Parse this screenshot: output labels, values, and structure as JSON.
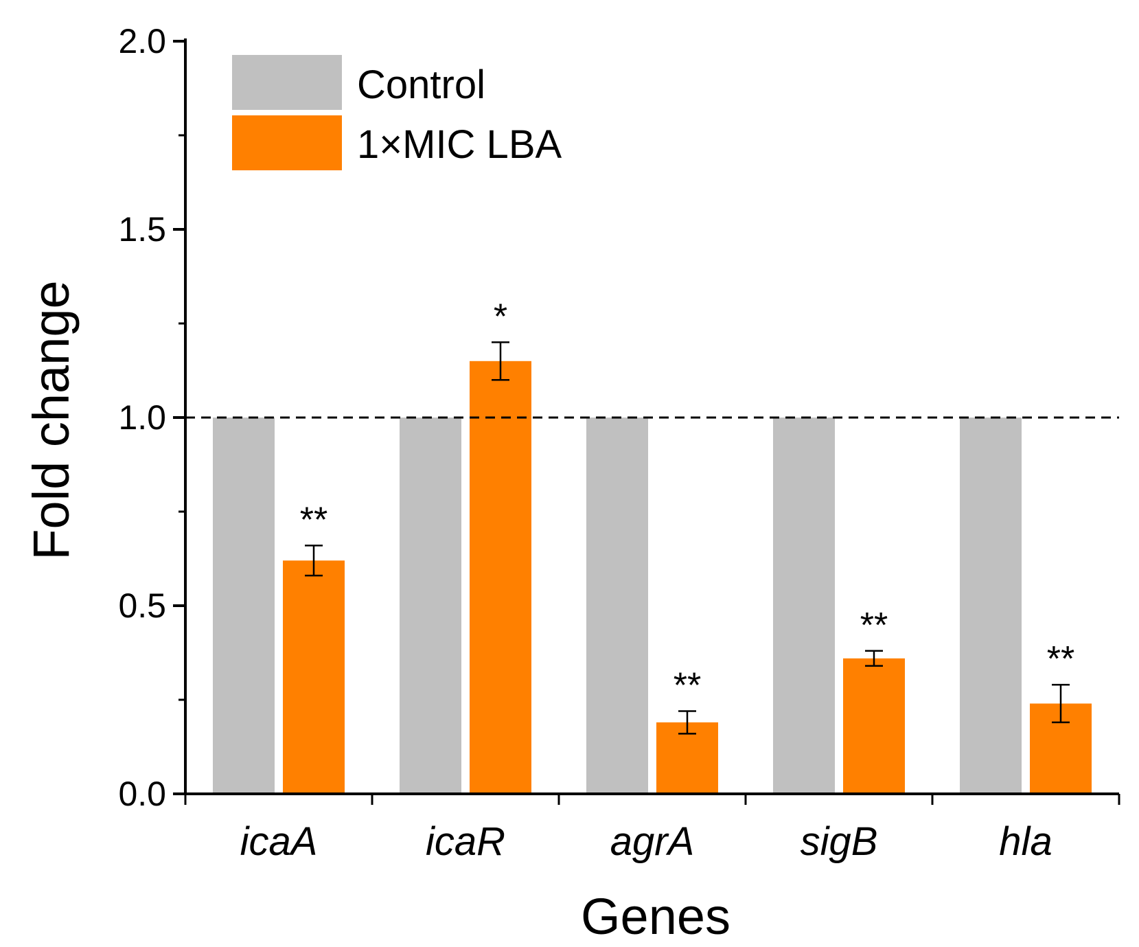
{
  "chart_data": {
    "type": "bar",
    "title": "",
    "xlabel": "Genes",
    "ylabel": "Fold change",
    "ylim": [
      0,
      2.0
    ],
    "yticks": [
      "0.0",
      "0.5",
      "1.0",
      "1.5",
      "2.0"
    ],
    "categories": [
      "icaA",
      "icaR",
      "agrA",
      "sigB",
      "hla"
    ],
    "series": [
      {
        "name": "Control",
        "color": "#c0c0c0",
        "values": [
          1.0,
          1.0,
          1.0,
          1.0,
          1.0
        ]
      },
      {
        "name": "1×MIC LBA",
        "color": "#ff8000",
        "values": [
          0.62,
          1.15,
          0.19,
          0.36,
          0.24
        ],
        "errors": [
          0.04,
          0.05,
          0.03,
          0.02,
          0.05
        ],
        "significance": [
          "**",
          "*",
          "**",
          "**",
          "**"
        ]
      }
    ],
    "reference_line": {
      "value": 1.0,
      "style": "dashed"
    },
    "legend": {
      "position": "top-left",
      "entries": [
        "Control",
        "1×MIC LBA"
      ]
    }
  }
}
